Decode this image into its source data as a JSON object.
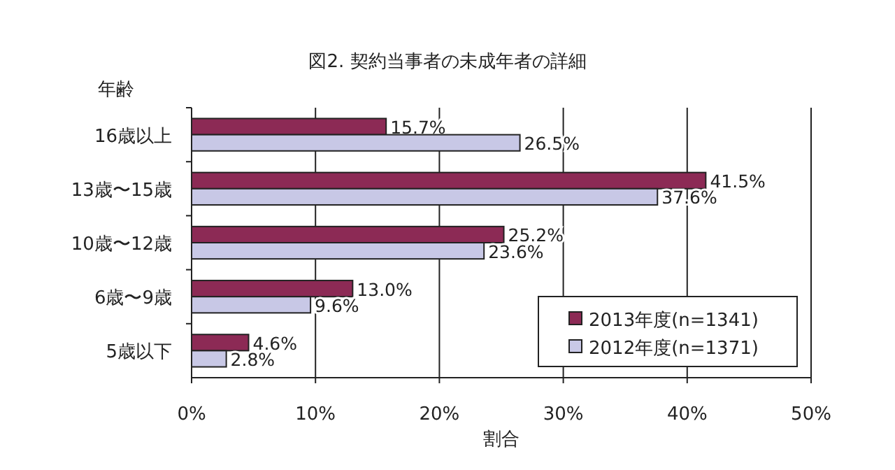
{
  "chart_data": {
    "type": "bar",
    "orientation": "horizontal",
    "title": "図2. 契約当事者の未成年者の詳細",
    "ylabel": "年齢",
    "xlabel": "割合",
    "categories": [
      "16歳以上",
      "13歳〜15歳",
      "10歳〜12歳",
      "6歳〜9歳",
      "5歳以下"
    ],
    "series": [
      {
        "name": "2013年度(n=1341)",
        "color": "#8c2a55",
        "values": [
          15.7,
          41.5,
          25.2,
          13.0,
          4.6
        ],
        "value_labels": [
          "15.7%",
          "41.5%",
          "25.2%",
          "13.0%",
          "4.6%"
        ]
      },
      {
        "name": "2012年度(n=1371)",
        "color": "#c8c8e6",
        "values": [
          26.5,
          37.6,
          23.6,
          9.6,
          2.8
        ],
        "value_labels": [
          "26.5%",
          "37.6%",
          "23.6%",
          "9.6%",
          "2.8%"
        ]
      }
    ],
    "xlim": [
      0,
      50
    ],
    "xticks": [
      {
        "value": 0,
        "label": "0%"
      },
      {
        "value": 10,
        "label": "10%"
      },
      {
        "value": 20,
        "label": "20%"
      },
      {
        "value": 30,
        "label": "30%"
      },
      {
        "value": 40,
        "label": "40%"
      },
      {
        "value": 50,
        "label": "50%"
      }
    ],
    "grid": "x",
    "legend": "bottom right"
  }
}
